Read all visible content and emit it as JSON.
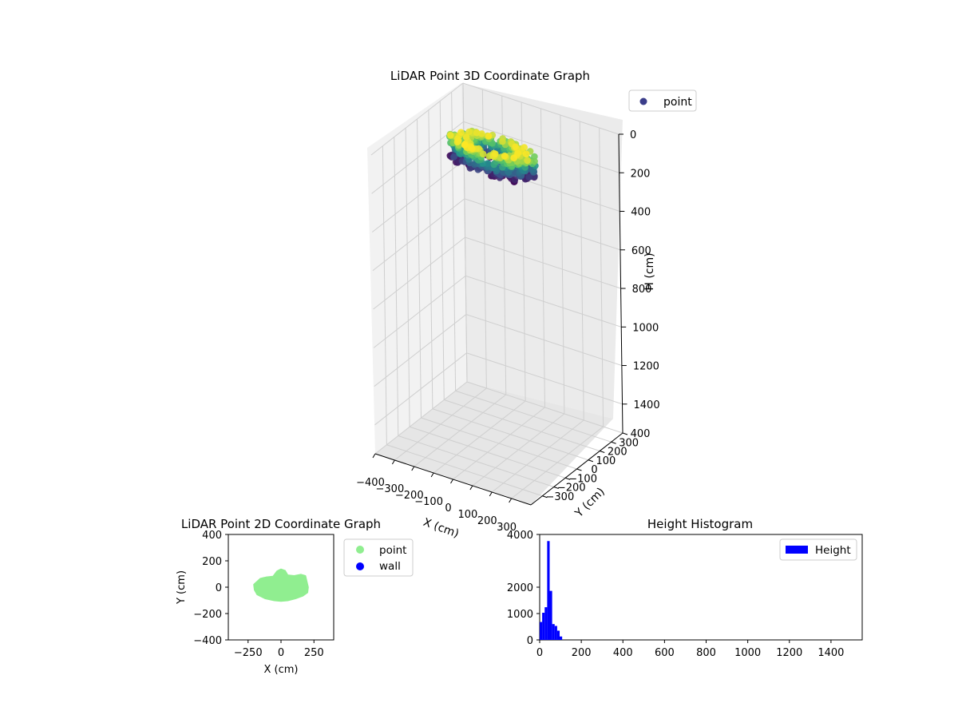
{
  "chart_data": [
    {
      "type": "scatter3d",
      "title": "LiDAR Point 3D Coordinate Graph",
      "xlabel": "X (cm)",
      "ylabel": "Y (cm)",
      "zlabel": "H (cm)",
      "xlim": [
        -400,
        400
      ],
      "ylim": [
        -400,
        400
      ],
      "zlim": [
        0,
        1550
      ],
      "z_inverted": true,
      "xticks": [
        -400,
        -300,
        -200,
        -100,
        0,
        100,
        200,
        300
      ],
      "yticks": [
        -300,
        -200,
        -100,
        0,
        100,
        200,
        300,
        400
      ],
      "zticks": [
        0,
        200,
        400,
        600,
        800,
        1000,
        1200,
        1400
      ],
      "grid": true,
      "legend": {
        "placement": "top-right",
        "entries": [
          {
            "label": "point",
            "color": "#3b3d8a"
          }
        ]
      },
      "colormap": "viridis",
      "color_by": "H (cm)",
      "series": [
        {
          "name": "point",
          "x_range": [
            -230,
            200
          ],
          "y_range": [
            -100,
            100
          ],
          "z_range": [
            0,
            120
          ]
        }
      ]
    },
    {
      "type": "scatter",
      "title": "LiDAR Point 2D Coordinate Graph",
      "xlabel": "X (cm)",
      "ylabel": "Y (cm)",
      "xlim": [
        -400,
        400
      ],
      "ylim": [
        -400,
        400
      ],
      "xticks": [
        -250,
        0,
        250
      ],
      "yticks": [
        -400,
        -200,
        0,
        200,
        400
      ],
      "grid": false,
      "legend": {
        "placement": "outside-right",
        "entries": [
          {
            "label": "point",
            "color": "#90ee90"
          },
          {
            "label": "wall",
            "color": "#0000ff"
          }
        ]
      },
      "series": [
        {
          "name": "point",
          "color": "#90ee90",
          "outline": [
            [
              -200,
              -20
            ],
            [
              -180,
              -55
            ],
            [
              -120,
              -85
            ],
            [
              -50,
              -100
            ],
            [
              0,
              -105
            ],
            [
              50,
              -100
            ],
            [
              110,
              -85
            ],
            [
              165,
              -65
            ],
            [
              200,
              -40
            ],
            [
              205,
              0
            ],
            [
              195,
              40
            ],
            [
              185,
              85
            ],
            [
              150,
              95
            ],
            [
              100,
              85
            ],
            [
              50,
              90
            ],
            [
              30,
              125
            ],
            [
              0,
              135
            ],
            [
              -30,
              120
            ],
            [
              -60,
              80
            ],
            [
              -110,
              75
            ],
            [
              -155,
              65
            ],
            [
              -205,
              20
            ]
          ]
        },
        {
          "name": "wall",
          "color": "#0000ff",
          "points": []
        }
      ]
    },
    {
      "type": "histogram",
      "title": "Height Histogram",
      "xlabel": "",
      "ylabel": "",
      "xlim": [
        0,
        1550
      ],
      "ylim": [
        0,
        4000
      ],
      "xticks": [
        0,
        200,
        400,
        600,
        800,
        1000,
        1200,
        1400
      ],
      "yticks": [
        0,
        1000,
        2000,
        4000
      ],
      "grid": false,
      "legend": {
        "placement": "top-right",
        "entries": [
          {
            "label": "Height",
            "color": "#0000ff"
          }
        ]
      },
      "bin_width": 12,
      "bin_start": 0,
      "color": "#0000ff",
      "series": [
        {
          "name": "Height",
          "counts": [
            680,
            1030,
            1240,
            3750,
            1860,
            600,
            530,
            350,
            130
          ]
        }
      ]
    }
  ]
}
